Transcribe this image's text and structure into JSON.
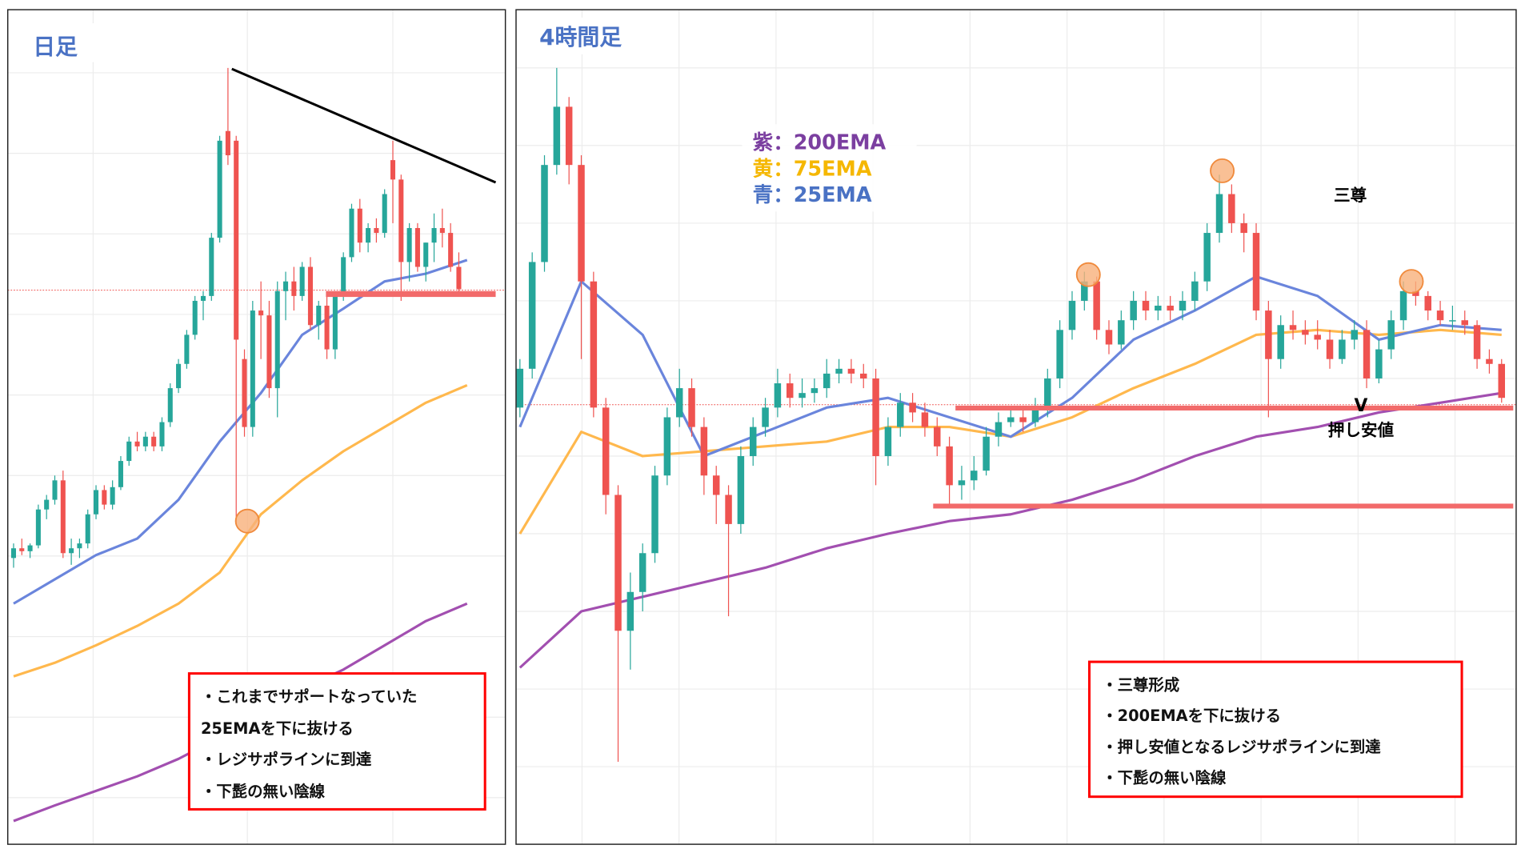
{
  "colors": {
    "up": "#26a69a",
    "down": "#ef5350",
    "ema200": "#a24fb0",
    "ema75": "#ffb84d",
    "ema25": "#6a85dc",
    "title": "#4a72c4",
    "box": "#ff0000",
    "band": "#f26a6a"
  },
  "chart_data": [
    {
      "type": "candlestick",
      "title": "日足",
      "units": "arbitrary price units (no axis shown)",
      "ohlc": [
        [
          29.5,
          31,
          28.5,
          30.5
        ],
        [
          30.5,
          31.5,
          29.8,
          30.2
        ],
        [
          30.2,
          31,
          29.5,
          30.8
        ],
        [
          30.8,
          35,
          30.5,
          34.5
        ],
        [
          34.5,
          36,
          33.5,
          35.5
        ],
        [
          35.5,
          38,
          35,
          37.5
        ],
        [
          37.5,
          38.5,
          29.5,
          30
        ],
        [
          30,
          31.5,
          28.8,
          30.5
        ],
        [
          30.5,
          31.5,
          29.5,
          31
        ],
        [
          31,
          34.5,
          30.5,
          34
        ],
        [
          34,
          37,
          33.5,
          36.5
        ],
        [
          36.5,
          37,
          34.5,
          35
        ],
        [
          35,
          37.5,
          34.5,
          36.8
        ],
        [
          36.8,
          40,
          36.5,
          39.5
        ],
        [
          39.5,
          42,
          39,
          41.5
        ],
        [
          41.5,
          42.5,
          40.5,
          41
        ],
        [
          41,
          42.5,
          40.5,
          42
        ],
        [
          42,
          42.5,
          40.5,
          41
        ],
        [
          41,
          44,
          40.5,
          43.5
        ],
        [
          43.5,
          47.5,
          43,
          47
        ],
        [
          47,
          50,
          46.5,
          49.5
        ],
        [
          49.5,
          53,
          49,
          52.5
        ],
        [
          52.5,
          56.5,
          52,
          56
        ],
        [
          56,
          57,
          54,
          56.5
        ],
        [
          56.5,
          63,
          56,
          62.5
        ],
        [
          62.5,
          73,
          62,
          72.5
        ],
        [
          73.5,
          80,
          70,
          71
        ],
        [
          72.5,
          73,
          33,
          52
        ],
        [
          50,
          51,
          42,
          43
        ],
        [
          43,
          56,
          42,
          55
        ],
        [
          55,
          58,
          50,
          54.5
        ],
        [
          54.5,
          56,
          46,
          47
        ],
        [
          47,
          58,
          44,
          57
        ],
        [
          57,
          59,
          54,
          58
        ],
        [
          58,
          59.5,
          55,
          56.5
        ],
        [
          56.5,
          60,
          56,
          59.5
        ],
        [
          59.5,
          60.5,
          53,
          53.5
        ],
        [
          53.5,
          56,
          52,
          55.5
        ],
        [
          55.5,
          57,
          50,
          51
        ],
        [
          51,
          57,
          50,
          56.5
        ],
        [
          56.5,
          61,
          56,
          60.5
        ],
        [
          60.5,
          66,
          60,
          65.5
        ],
        [
          65.5,
          66.5,
          61,
          62
        ],
        [
          62,
          64,
          61,
          63.5
        ],
        [
          63.5,
          64.5,
          62,
          63
        ],
        [
          63,
          67.5,
          62.5,
          67
        ],
        [
          70.5,
          72.5,
          64,
          68.5
        ],
        [
          68.5,
          69,
          56,
          60
        ],
        [
          60,
          64,
          58,
          63.5
        ],
        [
          63.5,
          64,
          59,
          59.5
        ],
        [
          59.5,
          62,
          58,
          62
        ],
        [
          62,
          65,
          60,
          63.5
        ],
        [
          63.5,
          65.5,
          61.5,
          63
        ],
        [
          63,
          64,
          59,
          59.5
        ],
        [
          59.5,
          61,
          56.5,
          57.2
        ]
      ],
      "ema_sample_step": 5,
      "series": [
        {
          "name": "200EMA",
          "values": [
            2.4,
            4,
            5.5,
            7,
            8.8,
            11,
            13.5,
            16,
            18,
            20.5,
            23,
            24.8
          ]
        },
        {
          "name": "75EMA",
          "values": [
            17.3,
            18.7,
            20.5,
            22.5,
            24.8,
            28,
            34,
            37.5,
            40.5,
            43,
            45.5,
            47.3
          ]
        },
        {
          "name": "25EMA",
          "values": [
            24.8,
            27.3,
            29.8,
            31.5,
            35.5,
            41.5,
            46.5,
            52.5,
            55.2,
            58,
            58.8,
            60.2
          ]
        }
      ],
      "annotations": {
        "notes": [
          "・これまでサポートなっていた",
          "25EMAを下に抜ける",
          "・レジサポラインに到達",
          "・下髭の無い陰線"
        ]
      }
    },
    {
      "type": "candlestick",
      "title": "4時間足",
      "units": "arbitrary price units (no axis shown)",
      "ohlc": [
        [
          45,
          50,
          44,
          49
        ],
        [
          49,
          61,
          48,
          60
        ],
        [
          60,
          71,
          59,
          70
        ],
        [
          70,
          80,
          69,
          76
        ],
        [
          76,
          77,
          68,
          70
        ],
        [
          70,
          71,
          50,
          58
        ],
        [
          58,
          59,
          44,
          45
        ],
        [
          45,
          46,
          34,
          36
        ],
        [
          36,
          37,
          8.5,
          22
        ],
        [
          22,
          28,
          18,
          26
        ],
        [
          26,
          31,
          24,
          30
        ],
        [
          30,
          39,
          29,
          38
        ],
        [
          38,
          45,
          37,
          44
        ],
        [
          44,
          49,
          43,
          47
        ],
        [
          47,
          48,
          42,
          43
        ],
        [
          43,
          44,
          36,
          38
        ],
        [
          38,
          39,
          33,
          36
        ],
        [
          36,
          37,
          23.5,
          33
        ],
        [
          33,
          41,
          32,
          40
        ],
        [
          40,
          44,
          39,
          43
        ],
        [
          43,
          46,
          42,
          45
        ],
        [
          45,
          49,
          44,
          47.5
        ],
        [
          47.5,
          48.5,
          45,
          46
        ],
        [
          46,
          48,
          45,
          46.5
        ],
        [
          46.5,
          48,
          45.5,
          47
        ],
        [
          47,
          50,
          46,
          48.5
        ],
        [
          48.5,
          50,
          47.5,
          49
        ],
        [
          49,
          50,
          47.5,
          48.5
        ],
        [
          48.5,
          49.5,
          47,
          48
        ],
        [
          48,
          49,
          37,
          40
        ],
        [
          40,
          44,
          39,
          43
        ],
        [
          43,
          46.5,
          42,
          45.5
        ],
        [
          45.5,
          46.5,
          43.5,
          44.5
        ],
        [
          44.5,
          45.5,
          42,
          43
        ],
        [
          43,
          44,
          40,
          41
        ],
        [
          41,
          42,
          35,
          37
        ],
        [
          37,
          39,
          35.5,
          37.5
        ],
        [
          37.5,
          40,
          36.5,
          38.5
        ],
        [
          38.5,
          43,
          38,
          42
        ],
        [
          42,
          44.5,
          41,
          43.5
        ],
        [
          43.5,
          45,
          43,
          44
        ],
        [
          44,
          45,
          42.5,
          43.5
        ],
        [
          43.5,
          46,
          43,
          45
        ],
        [
          45,
          49,
          44,
          48
        ],
        [
          48,
          54,
          47,
          53
        ],
        [
          53,
          57,
          52,
          56
        ],
        [
          56,
          59,
          55,
          58
        ],
        [
          58,
          58.5,
          52,
          53
        ],
        [
          53,
          54,
          50.5,
          51.5
        ],
        [
          51.5,
          55,
          51,
          54
        ],
        [
          54,
          57,
          53,
          56
        ],
        [
          56,
          57,
          54,
          55
        ],
        [
          55,
          56.5,
          54,
          55.5
        ],
        [
          55.5,
          56.5,
          54,
          55
        ],
        [
          55,
          57,
          54,
          56
        ],
        [
          56,
          59,
          55,
          58
        ],
        [
          58,
          64,
          57,
          63
        ],
        [
          63,
          69,
          62,
          67
        ],
        [
          67,
          68,
          63,
          64
        ],
        [
          64,
          65,
          61,
          63
        ],
        [
          63,
          64,
          54,
          55
        ],
        [
          55,
          56,
          44,
          50
        ],
        [
          50,
          54.5,
          49,
          53.5
        ],
        [
          53.5,
          55,
          52,
          53
        ],
        [
          53,
          54,
          51.5,
          52.5
        ],
        [
          52.5,
          54,
          51,
          52
        ],
        [
          52,
          53,
          49,
          50
        ],
        [
          50,
          53,
          49.5,
          52
        ],
        [
          52,
          54,
          51,
          53
        ],
        [
          53,
          54,
          47,
          48
        ],
        [
          48,
          52,
          47.5,
          51
        ],
        [
          51,
          55,
          50,
          54
        ],
        [
          54,
          58,
          53,
          57
        ],
        [
          57,
          58,
          55.5,
          56.5
        ],
        [
          56.5,
          57,
          54,
          55
        ],
        [
          55,
          56,
          53.5,
          54
        ],
        [
          54,
          55.5,
          53,
          54
        ],
        [
          54,
          55,
          52.5,
          53.5
        ],
        [
          53.5,
          54,
          49,
          50
        ],
        [
          50,
          51,
          48.5,
          49.5
        ],
        [
          49.5,
          50,
          45.5,
          46
        ]
      ],
      "ema_sample_step": 5,
      "series": [
        {
          "name": "200EMA",
          "values": [
            18.2,
            24,
            25.5,
            27,
            28.5,
            30.5,
            32,
            33.3,
            34,
            35.5,
            37.5,
            40,
            42,
            43,
            44.5,
            45.5,
            46.5
          ]
        },
        {
          "name": "75EMA",
          "values": [
            32,
            42.5,
            40,
            40.5,
            41,
            41.5,
            43,
            43,
            42,
            44,
            47,
            49.5,
            52.5,
            53,
            52.5,
            53,
            52.5
          ]
        },
        {
          "name": "25EMA",
          "values": [
            43,
            58,
            52.5,
            40,
            42.5,
            45,
            46,
            44,
            42,
            46,
            52,
            55,
            58.5,
            56.5,
            52,
            53.5,
            53
          ]
        }
      ],
      "legend": [
        "紫：200EMA",
        "黄：75EMA",
        "青：25EMA"
      ],
      "annotations": {
        "pattern_label": "三尊",
        "support_label": "押し安値",
        "check_mark": "V",
        "notes": [
          "・三尊形成",
          "・200EMAを下に抜ける",
          "・押し安値となるレジサポラインに到達",
          "・下髭の無い陰線"
        ]
      }
    }
  ]
}
